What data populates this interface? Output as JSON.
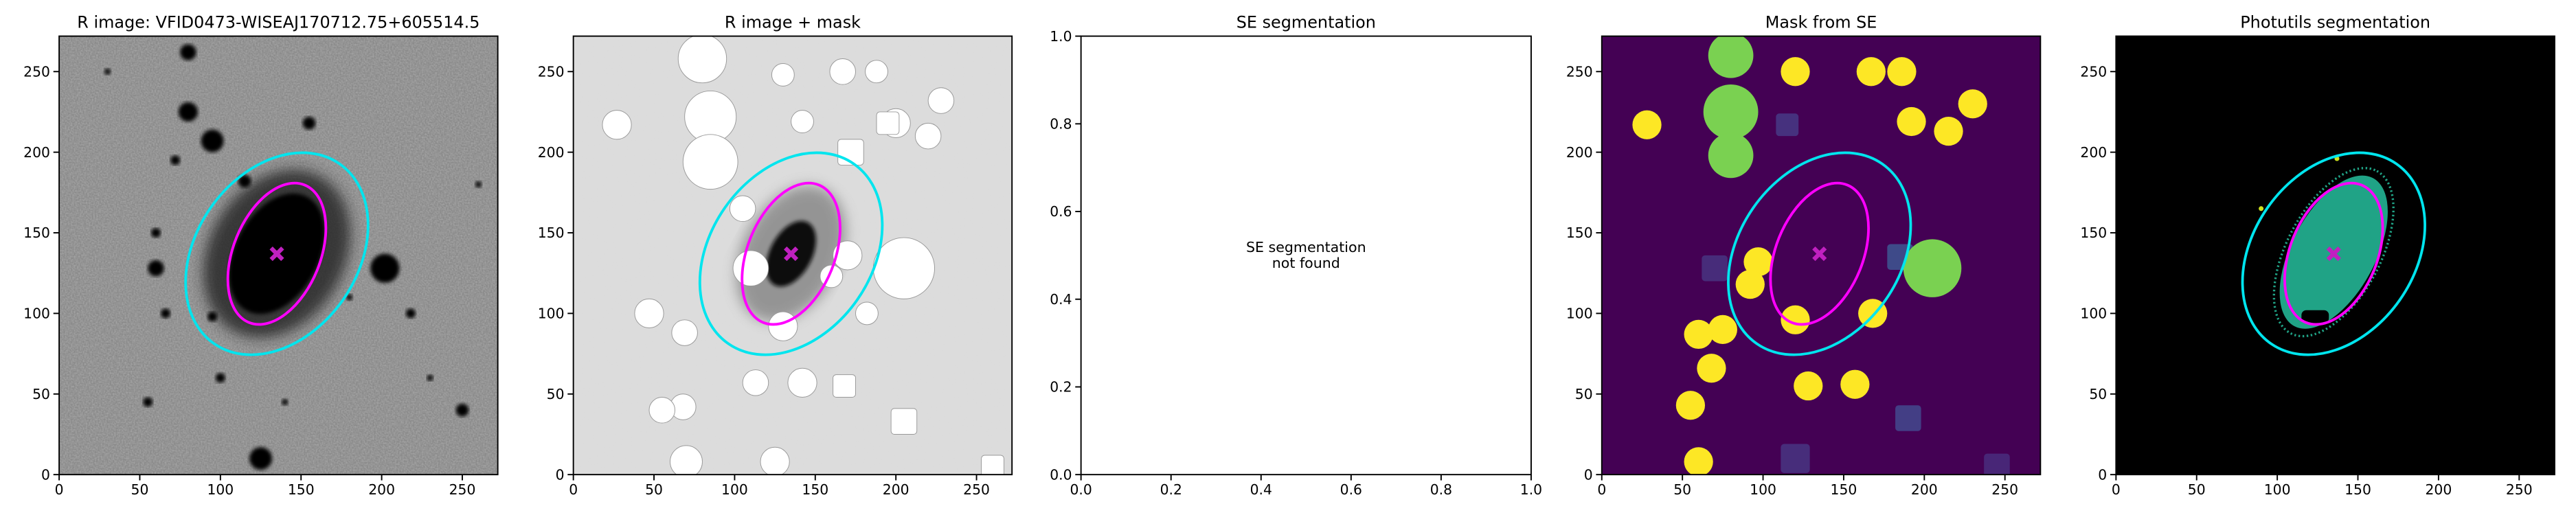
{
  "chart_data": [
    {
      "type": "image",
      "title": "R image: VFID0473-WISEAJ170712.75+605514.5",
      "xlim": [
        0,
        272
      ],
      "ylim": [
        0,
        272
      ],
      "xticks": [
        0,
        50,
        100,
        150,
        200,
        250
      ],
      "yticks": [
        0,
        50,
        100,
        150,
        200,
        250
      ]
    },
    {
      "type": "image",
      "title": "R image + mask",
      "xlim": [
        0,
        272
      ],
      "ylim": [
        0,
        272
      ],
      "xticks": [
        0,
        50,
        100,
        150,
        200,
        250
      ],
      "yticks": [
        0,
        50,
        100,
        150,
        200,
        250
      ]
    },
    {
      "type": "empty",
      "title": "SE segmentation",
      "annotation": [
        "SE segmentation",
        "not found"
      ],
      "xlim": [
        0,
        1
      ],
      "ylim": [
        0,
        1
      ],
      "xticks": [
        {
          "value": 0,
          "label": "0.0"
        },
        {
          "value": 0.2,
          "label": "0.2"
        },
        {
          "value": 0.4,
          "label": "0.4"
        },
        {
          "value": 0.6,
          "label": "0.6"
        },
        {
          "value": 0.8,
          "label": "0.8"
        },
        {
          "value": 1,
          "label": "1.0"
        }
      ],
      "yticks": [
        {
          "value": 0,
          "label": "0.0"
        },
        {
          "value": 0.2,
          "label": "0.2"
        },
        {
          "value": 0.4,
          "label": "0.4"
        },
        {
          "value": 0.6,
          "label": "0.6"
        },
        {
          "value": 0.8,
          "label": "0.8"
        },
        {
          "value": 1,
          "label": "1.0"
        }
      ]
    },
    {
      "type": "image",
      "title": "Mask from SE",
      "xlim": [
        0,
        272
      ],
      "ylim": [
        0,
        272
      ],
      "xticks": [
        0,
        50,
        100,
        150,
        200,
        250
      ],
      "yticks": [
        0,
        50,
        100,
        150,
        200,
        250
      ]
    },
    {
      "type": "image",
      "title": "Photutils segmentation",
      "xlim": [
        0,
        272
      ],
      "ylim": [
        0,
        272
      ],
      "xticks": [
        0,
        50,
        100,
        150,
        200,
        250
      ],
      "yticks": [
        0,
        50,
        100,
        150,
        200,
        250
      ]
    }
  ]
}
